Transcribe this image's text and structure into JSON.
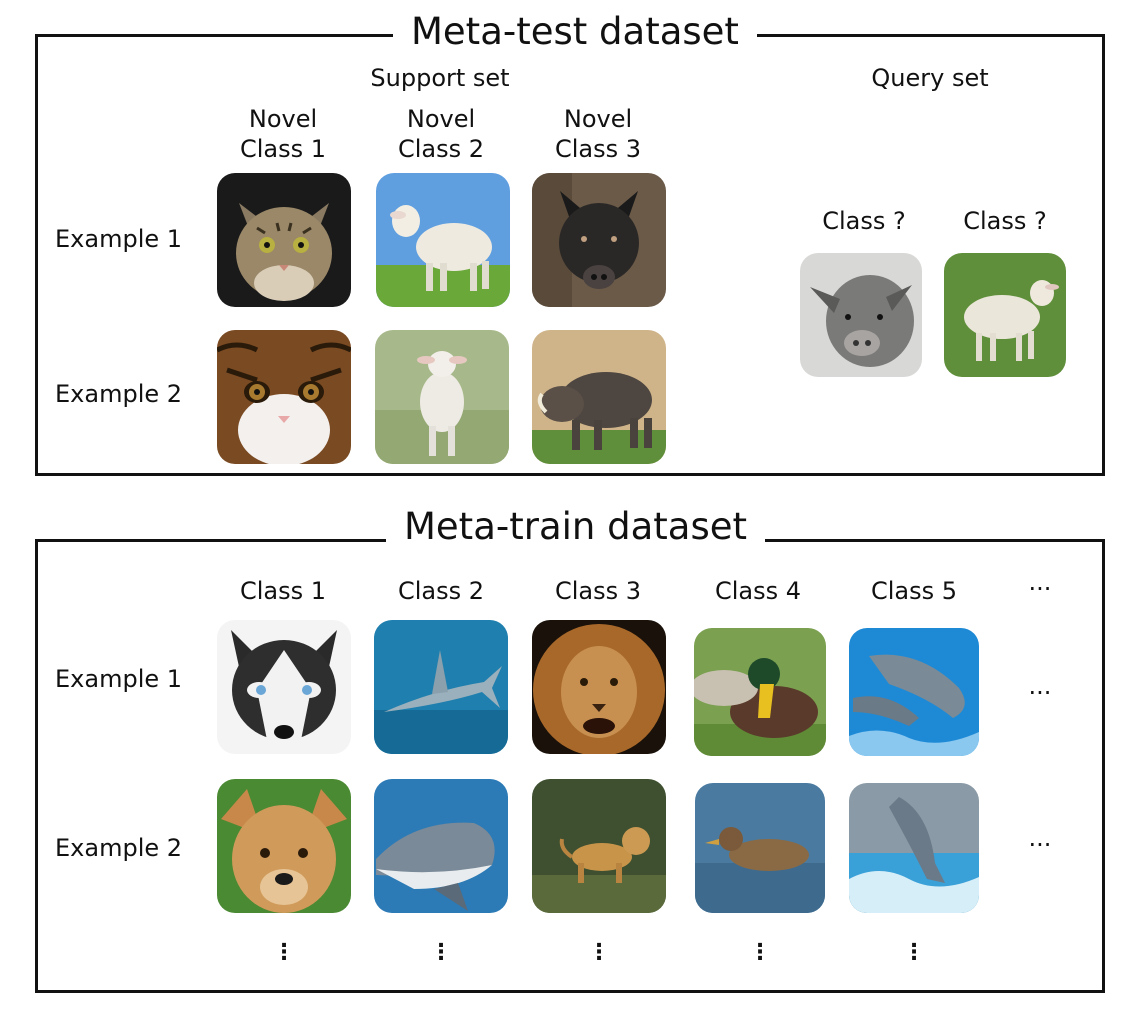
{
  "meta_test": {
    "title": "Meta-test dataset",
    "support_set": "Support set",
    "query_set": "Query set",
    "novel_classes": [
      "Novel\nClass 1",
      "Novel\nClass 2",
      "Novel\nClass 3"
    ],
    "rows": [
      "Example 1",
      "Example 2"
    ],
    "query_labels": [
      "Class ?",
      "Class ?"
    ],
    "support_images": [
      [
        "tabby-cat-photo",
        "lamb-photo",
        "wild-boar-photo"
      ],
      [
        "long-hair-cat-photo",
        "jumping-lamb-photo",
        "warthog-photo"
      ]
    ],
    "query_images": [
      "pig-photo",
      "lamb-grass-photo"
    ]
  },
  "meta_train": {
    "title": "Meta-train dataset",
    "classes": [
      "Class 1",
      "Class 2",
      "Class 3",
      "Class 4",
      "Class 5"
    ],
    "more": "···",
    "rows": [
      "Example 1",
      "Example 2"
    ],
    "vdots": "⋮",
    "images": [
      [
        "husky-photo",
        "shark-photo",
        "lion-photo",
        "mallard-duck-photo",
        "dolphin-photo"
      ],
      [
        "dog-photo",
        "great-white-shark-photo",
        "lion-cub-photo",
        "female-duck-photo",
        "jumping-dolphin-photo"
      ]
    ]
  },
  "colors": {
    "border": "#111111",
    "background": "#ffffff"
  }
}
